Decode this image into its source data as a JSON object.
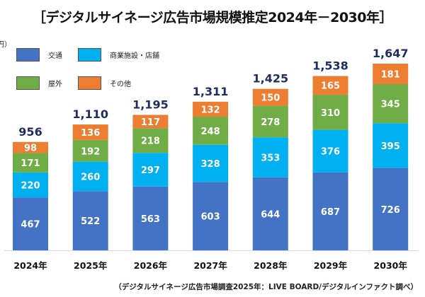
{
  "title": "［デジタルサイネージ広告市場規模推定2024年－2030年］",
  "unit_label": "円）",
  "source_note": "（デジタルサイネージ広告市場調査2025年：LIVE BOARD/デジタルインファクト調べ）",
  "legend": [
    {
      "name": "交通",
      "color": "#4472c4"
    },
    {
      "name": "商業施設・店舗",
      "color": "#00b0f0"
    },
    {
      "name": "屋外",
      "color": "#70ad47"
    },
    {
      "name": "その他",
      "color": "#ed7d31"
    }
  ],
  "chart_data": {
    "type": "bar",
    "stacked": true,
    "title": "［デジタルサイネージ広告市場規模推定2024年－2030年］",
    "xlabel": "",
    "ylabel": "",
    "categories": [
      "2024年",
      "2025年",
      "2026年",
      "2027年",
      "2028年",
      "2029年",
      "2030年"
    ],
    "series": [
      {
        "name": "交通",
        "color": "#4472c4",
        "values": [
          467,
          522,
          563,
          603,
          644,
          687,
          726
        ]
      },
      {
        "name": "商業施設・店舗",
        "color": "#00b0f0",
        "values": [
          220,
          260,
          297,
          328,
          353,
          376,
          395
        ]
      },
      {
        "name": "屋外",
        "color": "#70ad47",
        "values": [
          171,
          192,
          218,
          248,
          278,
          310,
          345
        ]
      },
      {
        "name": "その他",
        "color": "#ed7d31",
        "values": [
          98,
          136,
          117,
          132,
          150,
          165,
          181
        ]
      }
    ],
    "totals": [
      "956",
      "1,110",
      "1,195",
      "1,311",
      "1,425",
      "1,538",
      "1,647"
    ],
    "ylim": [
      0,
      1647
    ],
    "grid": false,
    "legend_position": "top-left"
  }
}
